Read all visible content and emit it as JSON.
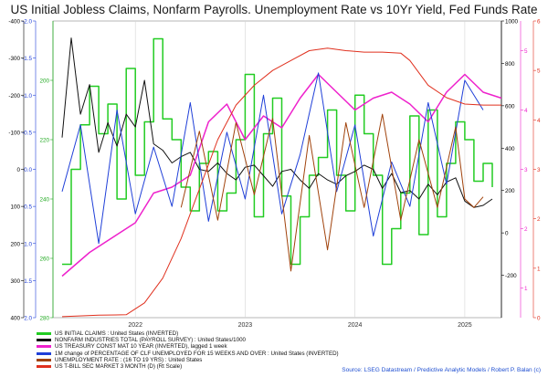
{
  "title": "US Initial Jobless Claims, Nonfarm Payrolls. Unemployment Rate vs 10Yr Yield, Fed Funds Rate",
  "source": "Source: LSEG Datastream / Predictive Analytic Models / Robert P. Balan (c)",
  "chart_data": {
    "type": "line",
    "title": "US Initial Jobless Claims, Nonfarm Payrolls. Unemployment Rate vs 10Yr Yield, Fed Funds Rate",
    "x_ticks": [
      "2022",
      "2023",
      "2024",
      "2025"
    ],
    "x_range": [
      "2021-04",
      "2025-05"
    ],
    "axes": [
      {
        "id": "ax_black",
        "side": "left",
        "color": "#000000",
        "range": [
          -400,
          400
        ],
        "ticks": [
          "-400",
          "-300",
          "-200",
          "-100",
          "0",
          "100",
          "200",
          "300",
          "400"
        ],
        "inverted": true
      },
      {
        "id": "ax_blue",
        "side": "left",
        "color": "#1f3fd8",
        "range": [
          -2.0,
          2.0
        ],
        "ticks": [
          "-2.0",
          "-1.5",
          "-1.0",
          "-0.5",
          "0.0",
          "0.5",
          "1.0",
          "1.5",
          "2.0"
        ],
        "inverted": true
      },
      {
        "id": "ax_green",
        "side": "left",
        "color": "#22aa22",
        "range": [
          180,
          280
        ],
        "ticks": [
          "200",
          "220",
          "240",
          "260",
          "280"
        ],
        "inverted": true
      },
      {
        "id": "ax_payroll",
        "side": "right",
        "color": "#000000",
        "range": [
          -400,
          1000
        ],
        "ticks": [
          "-200",
          "0",
          "200",
          "400",
          "600",
          "800",
          "1000"
        ],
        "inverted": false
      },
      {
        "id": "ax_pink",
        "side": "right",
        "color": "#ee22cc",
        "range": [
          0.5,
          5.5
        ],
        "ticks": [
          "1",
          "2",
          "3",
          "4",
          "5"
        ],
        "inverted": false
      },
      {
        "id": "ax_red",
        "side": "right",
        "color": "#e0301e",
        "range": [
          0,
          6
        ],
        "ticks": [
          "0",
          "1",
          "2",
          "3",
          "4",
          "5",
          "6"
        ],
        "inverted": false
      }
    ],
    "series": [
      {
        "name": "US INITIAL CLAIMS : United States (INVERTED)",
        "color": "#22cc22",
        "axis": "ax_green",
        "step": true,
        "x": [
          "2021-05",
          "2021-06",
          "2021-07",
          "2021-08",
          "2021-09",
          "2021-10",
          "2021-11",
          "2021-12",
          "2022-01",
          "2022-02",
          "2022-03",
          "2022-04",
          "2022-05",
          "2022-06",
          "2022-07",
          "2022-08",
          "2022-09",
          "2022-10",
          "2022-11",
          "2022-12",
          "2023-01",
          "2023-02",
          "2023-03",
          "2023-04",
          "2023-05",
          "2023-06",
          "2023-07",
          "2023-08",
          "2023-09",
          "2023-10",
          "2023-11",
          "2023-12",
          "2024-01",
          "2024-02",
          "2024-03",
          "2024-04",
          "2024-05",
          "2024-06",
          "2024-07",
          "2024-08",
          "2024-09",
          "2024-10",
          "2024-11",
          "2024-12",
          "2025-01",
          "2025-02",
          "2025-03",
          "2025-04"
        ],
        "values": [
          262,
          230,
          215,
          202,
          218,
          208,
          240,
          196,
          232,
          214,
          186,
          213,
          220,
          236,
          244,
          228,
          224,
          244,
          238,
          220,
          198,
          246,
          218,
          206,
          239,
          262,
          246,
          232,
          226,
          210,
          232,
          244,
          205,
          218,
          232,
          262,
          250,
          238,
          212,
          252,
          210,
          246,
          228,
          214,
          220,
          234,
          228,
          236
        ]
      },
      {
        "name": "NONFARM INDUSTRIES TOTAL (PAYROLL SURVEY) : United States/1000",
        "color": "#111111",
        "axis": "ax_payroll",
        "step": false,
        "x": [
          "2021-05",
          "2021-06",
          "2021-07",
          "2021-08",
          "2021-09",
          "2021-10",
          "2021-11",
          "2021-12",
          "2022-01",
          "2022-02",
          "2022-03",
          "2022-04",
          "2022-05",
          "2022-06",
          "2022-07",
          "2022-08",
          "2022-09",
          "2022-10",
          "2022-11",
          "2022-12",
          "2023-01",
          "2023-02",
          "2023-03",
          "2023-04",
          "2023-05",
          "2023-06",
          "2023-07",
          "2023-08",
          "2023-09",
          "2023-10",
          "2023-11",
          "2023-12",
          "2024-01",
          "2024-02",
          "2024-03",
          "2024-04",
          "2024-05",
          "2024-06",
          "2024-07",
          "2024-08",
          "2024-09",
          "2024-10",
          "2024-11",
          "2024-12",
          "2025-01",
          "2025-02",
          "2025-03",
          "2025-04"
        ],
        "values": [
          450,
          920,
          560,
          700,
          380,
          520,
          410,
          560,
          500,
          720,
          420,
          390,
          330,
          360,
          380,
          300,
          290,
          330,
          280,
          250,
          310,
          320,
          270,
          220,
          290,
          300,
          250,
          210,
          280,
          250,
          230,
          270,
          290,
          320,
          300,
          210,
          280,
          190,
          200,
          160,
          230,
          180,
          240,
          260,
          150,
          120,
          130,
          160
        ]
      },
      {
        "name": "US TREASURY CONST MAT 10 YEAR (INVERTED), lagged 1 week",
        "color": "#ee22cc",
        "axis": "ax_pink",
        "step": false,
        "x": [
          "2021-05",
          "2021-08",
          "2021-11",
          "2022-01",
          "2022-03",
          "2022-05",
          "2022-07",
          "2022-09",
          "2022-11",
          "2023-01",
          "2023-03",
          "2023-05",
          "2023-07",
          "2023-09",
          "2023-11",
          "2024-01",
          "2024-03",
          "2024-05",
          "2024-07",
          "2024-09",
          "2024-11",
          "2025-01",
          "2025-03",
          "2025-05"
        ],
        "values": [
          1.2,
          1.6,
          1.9,
          2.1,
          2.6,
          2.7,
          2.9,
          3.8,
          4.1,
          3.5,
          3.9,
          3.7,
          4.2,
          4.6,
          4.3,
          4.0,
          4.2,
          4.3,
          4.1,
          3.8,
          4.3,
          4.6,
          4.3,
          4.2
        ]
      },
      {
        "name": "1M change of PERCENTAGE OF CLF UNEMPLOYED FOR 15 WEEKS AND OVER : United States (INVERTED)",
        "color": "#1f3fd8",
        "axis": "ax_blue",
        "step": false,
        "x": [
          "2021-05",
          "2021-07",
          "2021-09",
          "2021-11",
          "2022-01",
          "2022-03",
          "2022-05",
          "2022-07",
          "2022-09",
          "2022-11",
          "2023-01",
          "2023-03",
          "2023-05",
          "2023-07",
          "2023-09",
          "2023-11",
          "2024-01",
          "2024-03",
          "2024-05",
          "2024-07",
          "2024-09",
          "2024-11",
          "2025-01",
          "2025-03"
        ],
        "values": [
          0.3,
          -0.6,
          1.0,
          -0.8,
          0.6,
          -0.3,
          0.5,
          -0.9,
          0.7,
          -0.5,
          0.4,
          -1.0,
          0.6,
          -0.2,
          -1.3,
          0.3,
          -0.6,
          0.9,
          -0.1,
          0.5,
          -0.9,
          0.2,
          -1.2,
          -0.8
        ]
      },
      {
        "name": "UNEMPLOYMENT RATE : (16 TO 19 YRS) : United States",
        "color": "#a0420b",
        "axis": "ax_payroll",
        "step": false,
        "x": [
          "2022-06",
          "2022-08",
          "2022-10",
          "2022-12",
          "2023-02",
          "2023-04",
          "2023-06",
          "2023-08",
          "2023-10",
          "2023-12",
          "2024-02",
          "2024-04",
          "2024-06",
          "2024-08",
          "2024-10",
          "2024-12",
          "2025-01",
          "2025-02",
          "2025-03"
        ],
        "values": [
          120,
          480,
          60,
          520,
          180,
          540,
          -180,
          460,
          -80,
          520,
          120,
          560,
          60,
          440,
          120,
          500,
          160,
          120,
          170
        ]
      },
      {
        "name": "US T-BILL SEC MARKET 3 MONTH (D) (Rt Scale)",
        "color": "#e0301e",
        "axis": "ax_red",
        "step": false,
        "x": [
          "2021-05",
          "2021-09",
          "2021-12",
          "2022-02",
          "2022-04",
          "2022-06",
          "2022-08",
          "2022-10",
          "2022-12",
          "2023-02",
          "2023-04",
          "2023-06",
          "2023-08",
          "2023-10",
          "2023-12",
          "2024-02",
          "2024-04",
          "2024-06",
          "2024-07",
          "2024-09",
          "2024-11",
          "2025-01",
          "2025-03",
          "2025-05"
        ],
        "values": [
          0.02,
          0.05,
          0.06,
          0.3,
          0.8,
          1.6,
          2.6,
          3.6,
          4.3,
          4.7,
          5.0,
          5.2,
          5.4,
          5.45,
          5.4,
          5.37,
          5.37,
          5.35,
          5.2,
          4.7,
          4.45,
          4.32,
          4.3,
          4.3
        ]
      }
    ]
  }
}
